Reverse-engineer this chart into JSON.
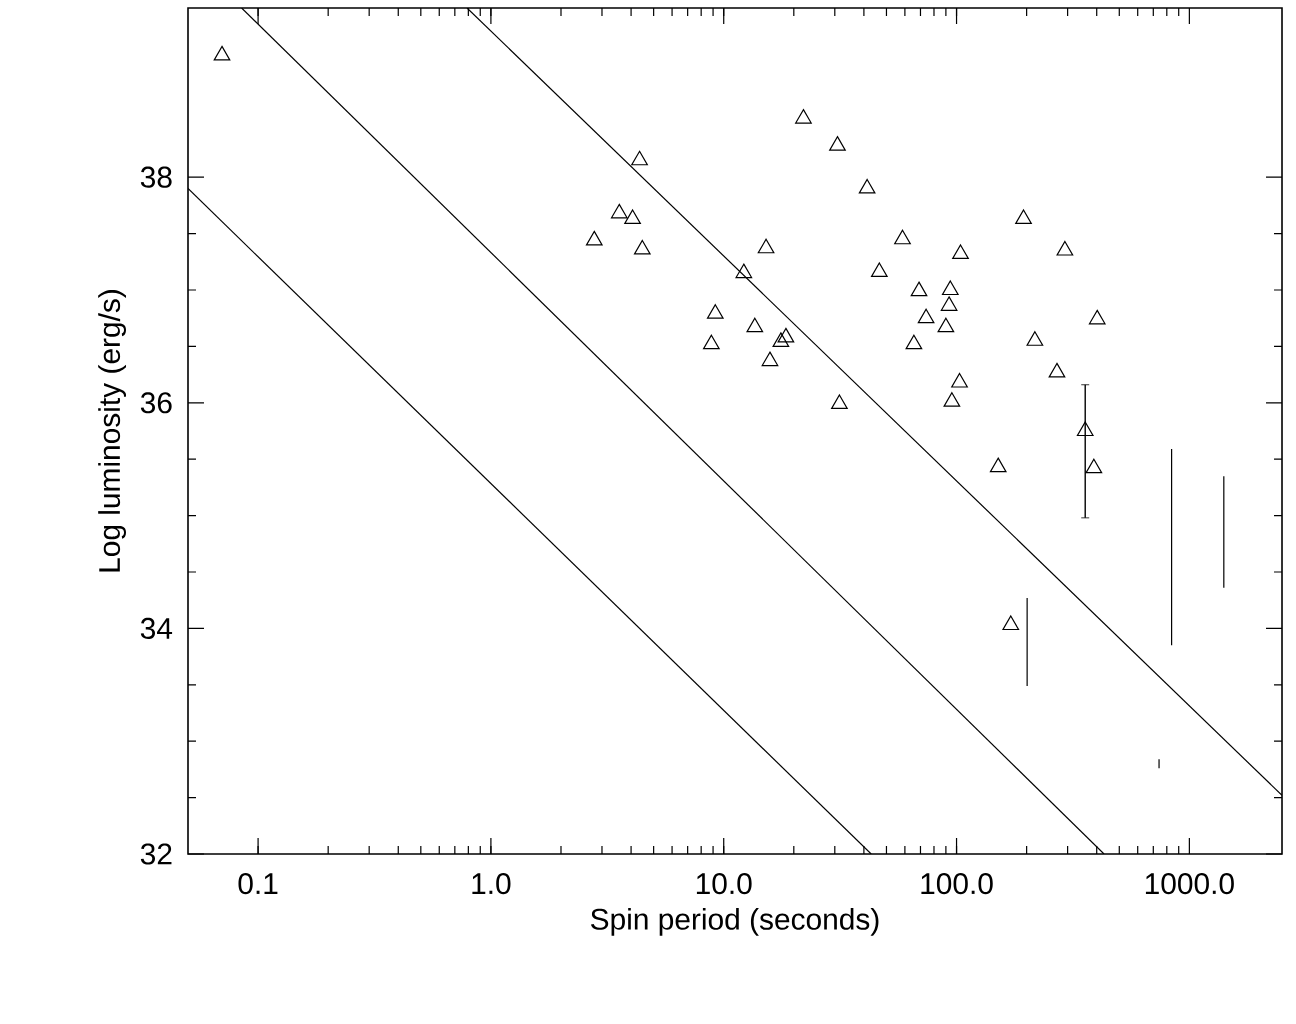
{
  "chart_data": {
    "type": "scatter",
    "xlabel": "Spin period (seconds)",
    "ylabel": "Log luminosity (erg/s)",
    "log": "x",
    "xlim": [
      0.05,
      2500
    ],
    "ylim": [
      32,
      39.5
    ],
    "xticks": [
      {
        "value": 0.1,
        "label": "0.1"
      },
      {
        "value": 1,
        "label": "1.0"
      },
      {
        "value": 10,
        "label": "10.0"
      },
      {
        "value": 100,
        "label": "100.0"
      },
      {
        "value": 1000,
        "label": "1000.0"
      }
    ],
    "yticks": [
      32,
      34,
      36,
      38
    ],
    "marker": "triangle",
    "series": [
      {
        "color": "#000000",
        "x": [
          0.07,
          4.35,
          3.56,
          4.06,
          2.78,
          4.47,
          22.0,
          30.8,
          41.3,
          58.6,
          104,
          194,
          292,
          402,
          15.2,
          12.2,
          46.6,
          9.2,
          8.85,
          13.6,
          18.5,
          17.6,
          15.8,
          31.4,
          69,
          74,
          65.6,
          94,
          92.9,
          90,
          95.5,
          103,
          217,
          270,
          151,
          357,
          389,
          171
        ],
        "values": [
          39.08,
          38.15,
          37.68,
          37.63,
          37.44,
          37.36,
          38.52,
          38.28,
          37.9,
          37.45,
          37.32,
          37.63,
          37.35,
          36.74,
          37.37,
          37.15,
          37.16,
          36.79,
          36.52,
          36.67,
          36.58,
          36.54,
          36.37,
          35.99,
          36.99,
          36.75,
          36.52,
          37.0,
          36.86,
          36.67,
          36.01,
          36.18,
          36.55,
          36.27,
          35.43,
          35.75,
          35.42,
          34.03
        ],
        "errors": [
          null,
          null,
          null,
          null,
          null,
          null,
          null,
          null,
          null,
          null,
          null,
          null,
          null,
          null,
          null,
          null,
          null,
          null,
          null,
          null,
          null,
          null,
          null,
          null,
          null,
          null,
          null,
          null,
          null,
          null,
          null,
          null,
          null,
          null,
          null,
          [
            34.98,
            36.16
          ],
          null,
          null
        ]
      },
      {
        "type": "line",
        "color": "#000000",
        "marker": "none",
        "x": [
          201,
          201
        ],
        "values": [
          33.49,
          34.27
        ]
      },
      {
        "type": "line",
        "color": "#000000",
        "marker": "none",
        "x": [
          839,
          839,
          839,
          839
        ],
        "values": [
          33.85,
          34.27,
          34.62,
          35.59
        ]
      },
      {
        "type": "line",
        "color": "#000000",
        "marker": "none",
        "x": [
          1406,
          1406
        ],
        "values": [
          34.36,
          35.35
        ]
      },
      {
        "type": "line",
        "color": "#000000",
        "marker": "none",
        "x": [
          741,
          741
        ],
        "values": [
          32.76,
          32.84
        ]
      },
      {
        "type": "line",
        "color": "#000000",
        "marker": "none",
        "x": [
          0.05,
          43
        ],
        "values": [
          37.9,
          32
        ]
      },
      {
        "type": "line",
        "color": "#000000",
        "marker": "none",
        "x": [
          0.085,
          430
        ],
        "values": [
          39.5,
          32
        ]
      },
      {
        "type": "line",
        "color": "#000000",
        "marker": "none",
        "x": [
          0.79,
          2500
        ],
        "values": [
          39.5,
          32.52
        ]
      }
    ]
  }
}
